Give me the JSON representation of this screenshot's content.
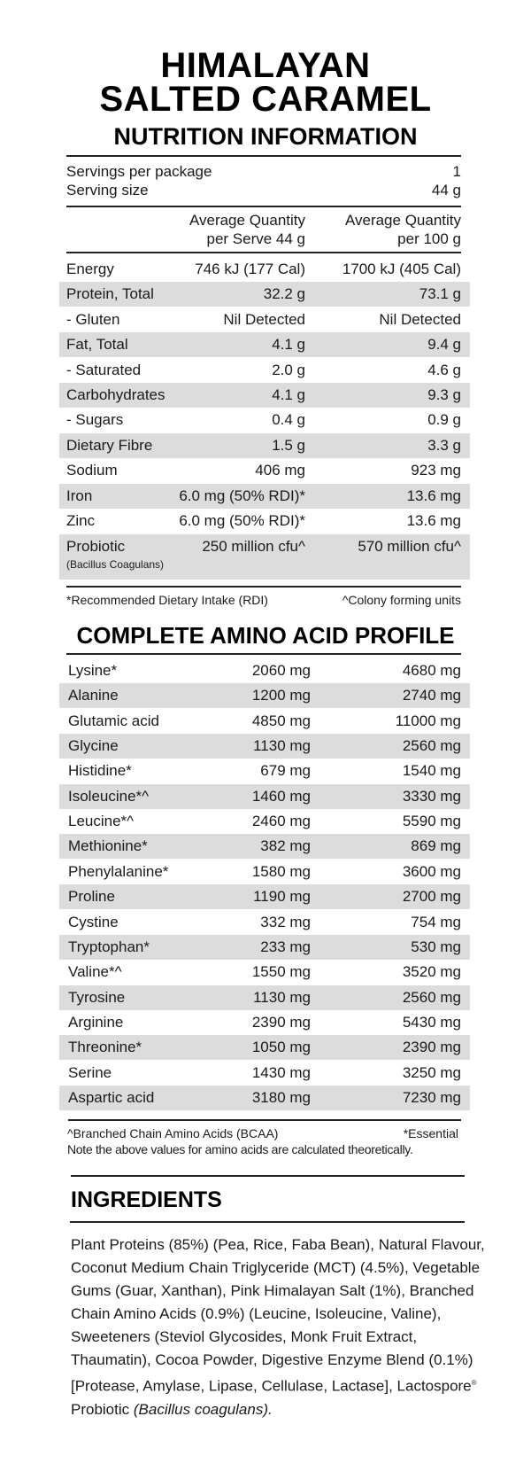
{
  "title": {
    "line1": "HIMALAYAN",
    "line2": "SALTED CARAMEL"
  },
  "nutrition": {
    "heading": "NUTRITION INFORMATION",
    "servings_per_package_label": "Servings per package",
    "servings_per_package_value": "1",
    "serving_size_label": "Serving size",
    "serving_size_value": "44 g",
    "col2_header_line1": "Average Quantity",
    "col2_header_line2": "per Serve 44 g",
    "col3_header_line1": "Average Quantity",
    "col3_header_line2": "per 100 g",
    "rows": [
      {
        "label": "Energy",
        "per_serve": "746 kJ (177 Cal)",
        "per_100g": "1700 kJ (405 Cal)"
      },
      {
        "label": "Protein, Total",
        "per_serve": "32.2 g",
        "per_100g": "73.1 g"
      },
      {
        "label": "- Gluten",
        "per_serve": "Nil Detected",
        "per_100g": "Nil Detected"
      },
      {
        "label": "Fat, Total",
        "per_serve": "4.1 g",
        "per_100g": "9.4 g"
      },
      {
        "label": "- Saturated",
        "per_serve": "2.0 g",
        "per_100g": "4.6 g"
      },
      {
        "label": "Carbohydrates",
        "per_serve": "4.1 g",
        "per_100g": "9.3 g"
      },
      {
        "label": "- Sugars",
        "per_serve": "0.4 g",
        "per_100g": "0.9 g"
      },
      {
        "label": "Dietary Fibre",
        "per_serve": "1.5 g",
        "per_100g": "3.3 g"
      },
      {
        "label": "Sodium",
        "per_serve": "406 mg",
        "per_100g": "923 mg"
      },
      {
        "label": "Iron",
        "per_serve": "6.0 mg (50% RDI)*",
        "per_100g": "13.6 mg"
      },
      {
        "label": "Zinc",
        "per_serve": "6.0 mg (50% RDI)*",
        "per_100g": "13.6 mg"
      }
    ],
    "probiotic": {
      "label": "Probiotic",
      "sublabel": "(Bacillus Coagulans)",
      "per_serve": "250 million cfu^",
      "per_100g": "570 million cfu^"
    },
    "footnote_left": "*Recommended Dietary Intake (RDI)",
    "footnote_right": "^Colony forming units"
  },
  "amino": {
    "heading": "COMPLETE AMINO ACID PROFILE",
    "rows": [
      {
        "label": "Lysine*",
        "per_serve": "2060 mg",
        "per_100g": "4680 mg"
      },
      {
        "label": "Alanine",
        "per_serve": "1200 mg",
        "per_100g": "2740 mg"
      },
      {
        "label": "Glutamic acid",
        "per_serve": "4850 mg",
        "per_100g": "11000 mg"
      },
      {
        "label": "Glycine",
        "per_serve": "1130 mg",
        "per_100g": "2560 mg"
      },
      {
        "label": "Histidine*",
        "per_serve": "679 mg",
        "per_100g": "1540 mg"
      },
      {
        "label": "Isoleucine*^",
        "per_serve": "1460 mg",
        "per_100g": "3330 mg"
      },
      {
        "label": "Leucine*^",
        "per_serve": "2460 mg",
        "per_100g": "5590 mg"
      },
      {
        "label": "Methionine*",
        "per_serve": "382 mg",
        "per_100g": "869 mg"
      },
      {
        "label": "Phenylalanine*",
        "per_serve": "1580 mg",
        "per_100g": "3600 mg"
      },
      {
        "label": "Proline",
        "per_serve": "1190 mg",
        "per_100g": "2700 mg"
      },
      {
        "label": "Cystine",
        "per_serve": "332 mg",
        "per_100g": "754 mg"
      },
      {
        "label": "Tryptophan*",
        "per_serve": "233 mg",
        "per_100g": "530 mg"
      },
      {
        "label": "Valine*^",
        "per_serve": "1550 mg",
        "per_100g": "3520 mg"
      },
      {
        "label": "Tyrosine",
        "per_serve": "1130 mg",
        "per_100g": "2560 mg"
      },
      {
        "label": "Arginine",
        "per_serve": "2390 mg",
        "per_100g": "5430 mg"
      },
      {
        "label": "Threonine*",
        "per_serve": "1050 mg",
        "per_100g": "2390 mg"
      },
      {
        "label": "Serine",
        "per_serve": "1430 mg",
        "per_100g": "3250 mg"
      },
      {
        "label": "Aspartic acid",
        "per_serve": "3180 mg",
        "per_100g": "7230 mg"
      }
    ],
    "footnote_left": "^Branched Chain Amino Acids (BCAA)",
    "footnote_right": "*Essential",
    "note": "Note the above values for amino acids are calculated theoretically."
  },
  "ingredients": {
    "heading": "INGREDIENTS",
    "text": "Plant Proteins (85%) (Pea, Rice, Faba Bean), Natural Flavour, Coconut Medium Chain Triglyceride (MCT) (4.5%), Vegetable Gums (Guar, Xanthan), Pink Himalayan Salt (1%), Branched Chain Amino Acids (0.9%) (Leucine, Isoleucine, Valine), Sweeteners (Steviol Glycosides, Monk Fruit Extract, Thaumatin), Cocoa Powder, Digestive Enzyme Blend (0.1%) [Protease, Amylase, Lipase, Cellulase, Lactase], Lactospore",
    "registered_mark": "®",
    "text_end": " Probiotic ",
    "italic_end": "(Bacillus coagulans)."
  },
  "colors": {
    "row_shade": "#dcdcdc",
    "text": "#1a1a1a",
    "rule": "#222222"
  }
}
